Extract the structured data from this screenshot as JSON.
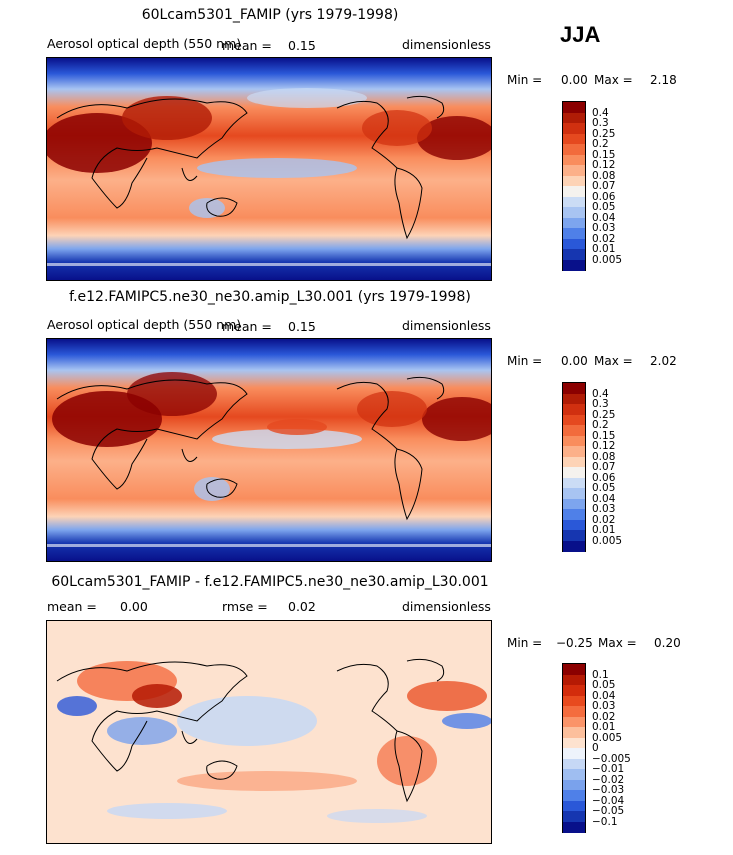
{
  "season": "JJA",
  "chart_data": [
    {
      "type": "heatmap",
      "panel": "top",
      "title": "60Lcam5301_FAMIP (yrs 1979-1998)",
      "variable": "Aerosol optical depth (550 nm)",
      "mean_label": "mean =",
      "mean_value": "0.15",
      "units": "dimensionless",
      "min_label": "Min =",
      "min_value": "0.00",
      "max_label": "Max =",
      "max_value": "2.18",
      "colorbar": {
        "levels": [
          "0.4",
          "0.3",
          "0.25",
          "0.2",
          "0.15",
          "0.12",
          "0.08",
          "0.07",
          "0.06",
          "0.05",
          "0.04",
          "0.03",
          "0.02",
          "0.01",
          "0.005"
        ],
        "colors": [
          "#8b0000",
          "#b01c06",
          "#d03010",
          "#e5491f",
          "#f26b3c",
          "#f98d5d",
          "#fcb089",
          "#fdd3b6",
          "#f5f2ee",
          "#cbdcf5",
          "#a8c4f2",
          "#7da5ee",
          "#4f80e8",
          "#2a58d8",
          "#1636b0",
          "#08108a"
        ]
      }
    },
    {
      "type": "heatmap",
      "panel": "middle",
      "title": "f.e12.FAMIPC5.ne30_ne30.amip_L30.001 (yrs 1979-1998)",
      "variable": "Aerosol optical depth (550 nm)",
      "mean_label": "mean =",
      "mean_value": "0.15",
      "units": "dimensionless",
      "min_label": "Min =",
      "min_value": "0.00",
      "max_label": "Max =",
      "max_value": "2.02",
      "colorbar": {
        "levels": [
          "0.4",
          "0.3",
          "0.25",
          "0.2",
          "0.15",
          "0.12",
          "0.08",
          "0.07",
          "0.06",
          "0.05",
          "0.04",
          "0.03",
          "0.02",
          "0.01",
          "0.005"
        ],
        "colors": [
          "#8b0000",
          "#b01c06",
          "#d03010",
          "#e5491f",
          "#f26b3c",
          "#f98d5d",
          "#fcb089",
          "#fdd3b6",
          "#f5f2ee",
          "#cbdcf5",
          "#a8c4f2",
          "#7da5ee",
          "#4f80e8",
          "#2a58d8",
          "#1636b0",
          "#08108a"
        ]
      }
    },
    {
      "type": "heatmap",
      "panel": "difference",
      "title": "60Lcam5301_FAMIP - f.e12.FAMIPC5.ne30_ne30.amip_L30.001",
      "mean_label": "mean =",
      "mean_value": "0.00",
      "rmse_label": "rmse =",
      "rmse_value": "0.02",
      "units": "dimensionless",
      "min_label": "Min =",
      "min_value": "−0.25",
      "max_label": "Max =",
      "max_value": "0.20",
      "colorbar": {
        "levels": [
          "0.1",
          "0.05",
          "0.04",
          "0.03",
          "0.02",
          "0.01",
          "0.005",
          "0",
          "−0.005",
          "−0.01",
          "−0.02",
          "−0.03",
          "−0.04",
          "−0.05",
          "−0.1"
        ],
        "colors": [
          "#8b0000",
          "#b51a04",
          "#d32c0c",
          "#e84a1e",
          "#f46c3e",
          "#fa9469",
          "#fcbf9c",
          "#fde2cf",
          "#eef3fb",
          "#c6d8f5",
          "#9fbef1",
          "#7aa2ec",
          "#4f80e8",
          "#2a58d8",
          "#1636b0",
          "#08108a"
        ]
      }
    }
  ]
}
